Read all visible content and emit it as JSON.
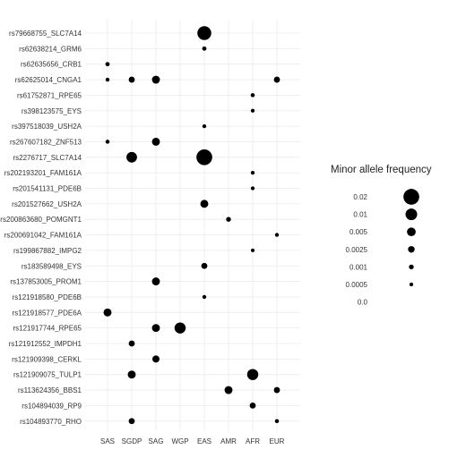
{
  "chart_data": {
    "type": "scatter",
    "x_categories": [
      "SAS",
      "SGDP",
      "SAG",
      "WGP",
      "EAS",
      "AMR",
      "AFR",
      "EUR"
    ],
    "y_categories": [
      "rs79668755_SLC7A14",
      "rs62638214_GRM6",
      "rs62635656_CRB1",
      "rs62625014_CNGA1",
      "rs61752871_RPE65",
      "rs398123575_EYS",
      "rs397518039_USH2A",
      "rs267607182_ZNF513",
      "rs2276717_SLC7A14",
      "rs202193201_FAM161A",
      "rs201541131_PDE6B",
      "rs201527662_USH2A",
      "rs200863680_POMGNT1",
      "rs200691042_FAM161A",
      "rs199867882_IMPG2",
      "rs183589498_EYS",
      "rs137853005_PROM1",
      "rs121918580_PDE6B",
      "rs121918577_PDE6A",
      "rs121917744_RPE65",
      "rs121912552_IMPDH1",
      "rs121909398_CERKL",
      "rs121909075_TULP1",
      "rs113624356_BBS1",
      "rs104894039_RP9",
      "rs104893770_RHO"
    ],
    "points": [
      {
        "y": "rs79668755_SLC7A14",
        "x": "EAS",
        "maf": 0.015
      },
      {
        "y": "rs62638214_GRM6",
        "x": "EAS",
        "maf": 0.0007
      },
      {
        "y": "rs62635656_CRB1",
        "x": "SAS",
        "maf": 0.0007
      },
      {
        "y": "rs62625014_CNGA1",
        "x": "SAS",
        "maf": 0.0005
      },
      {
        "y": "rs62625014_CNGA1",
        "x": "SGDP",
        "maf": 0.002
      },
      {
        "y": "rs62625014_CNGA1",
        "x": "SAG",
        "maf": 0.004
      },
      {
        "y": "rs62625014_CNGA1",
        "x": "EUR",
        "maf": 0.002
      },
      {
        "y": "rs61752871_RPE65",
        "x": "AFR",
        "maf": 0.0006
      },
      {
        "y": "rs398123575_EYS",
        "x": "AFR",
        "maf": 0.0005
      },
      {
        "y": "rs397518039_USH2A",
        "x": "EAS",
        "maf": 0.0005
      },
      {
        "y": "rs267607182_ZNF513",
        "x": "SAS",
        "maf": 0.0006
      },
      {
        "y": "rs267607182_ZNF513",
        "x": "SAG",
        "maf": 0.004
      },
      {
        "y": "rs2276717_SLC7A14",
        "x": "SGDP",
        "maf": 0.008
      },
      {
        "y": "rs2276717_SLC7A14",
        "x": "EAS",
        "maf": 0.02
      },
      {
        "y": "rs202193201_FAM161A",
        "x": "AFR",
        "maf": 0.0005
      },
      {
        "y": "rs201541131_PDE6B",
        "x": "AFR",
        "maf": 0.0005
      },
      {
        "y": "rs201527662_USH2A",
        "x": "EAS",
        "maf": 0.004
      },
      {
        "y": "rs200863680_POMGNT1",
        "x": "AMR",
        "maf": 0.001
      },
      {
        "y": "rs200691042_FAM161A",
        "x": "EUR",
        "maf": 0.0005
      },
      {
        "y": "rs199867882_IMPG2",
        "x": "AFR",
        "maf": 0.0004
      },
      {
        "y": "rs183589498_EYS",
        "x": "EAS",
        "maf": 0.002
      },
      {
        "y": "rs137853005_PROM1",
        "x": "SAG",
        "maf": 0.004
      },
      {
        "y": "rs121918580_PDE6B",
        "x": "EAS",
        "maf": 0.0005
      },
      {
        "y": "rs121918577_PDE6A",
        "x": "SAS",
        "maf": 0.004
      },
      {
        "y": "rs121917744_RPE65",
        "x": "SAG",
        "maf": 0.004
      },
      {
        "y": "rs121917744_RPE65",
        "x": "WGP",
        "maf": 0.009
      },
      {
        "y": "rs121912552_IMPDH1",
        "x": "SGDP",
        "maf": 0.002
      },
      {
        "y": "rs121909398_CERKL",
        "x": "SAG",
        "maf": 0.003
      },
      {
        "y": "rs121909075_TULP1",
        "x": "SGDP",
        "maf": 0.004
      },
      {
        "y": "rs121909075_TULP1",
        "x": "AFR",
        "maf": 0.009
      },
      {
        "y": "rs113624356_BBS1",
        "x": "AMR",
        "maf": 0.004
      },
      {
        "y": "rs113624356_BBS1",
        "x": "EUR",
        "maf": 0.002
      },
      {
        "y": "rs104894039_RP9",
        "x": "AFR",
        "maf": 0.002
      },
      {
        "y": "rs104893770_RHO",
        "x": "SGDP",
        "maf": 0.002
      },
      {
        "y": "rs104893770_RHO",
        "x": "EUR",
        "maf": 0.0006
      }
    ],
    "legend": {
      "title": "Minor allele frequency",
      "entries": [
        {
          "label": "0.02",
          "value": 0.02
        },
        {
          "label": "0.01",
          "value": 0.01
        },
        {
          "label": "0.005",
          "value": 0.005
        },
        {
          "label": "0.0025",
          "value": 0.0025
        },
        {
          "label": "0.001",
          "value": 0.001
        },
        {
          "label": "0.0005",
          "value": 0.0005
        },
        {
          "label": "0.0",
          "value": 0.0
        }
      ],
      "placement": "right"
    },
    "grid": true,
    "title": "",
    "xlabel": "",
    "ylabel": "",
    "colors": {
      "point": "#000000",
      "grid": "#ebebeb",
      "text": "#333333"
    }
  }
}
